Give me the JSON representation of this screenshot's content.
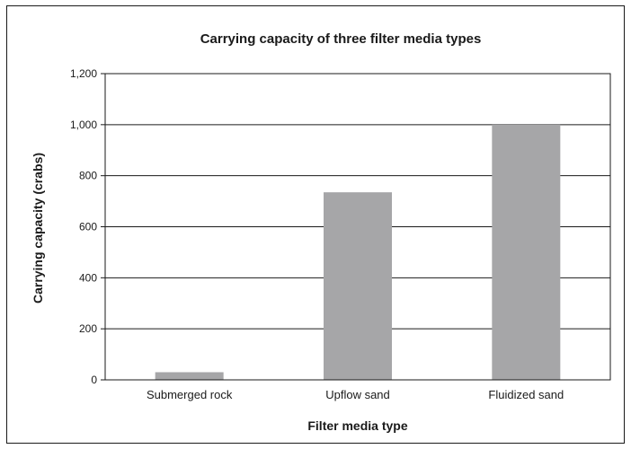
{
  "chart_data": {
    "type": "bar",
    "title": "Carrying capacity of three filter media types",
    "xlabel": "Filter media type",
    "ylabel": "Carrying capacity (crabs)",
    "categories": [
      "Submerged rock",
      "Upflow sand",
      "Fluidized sand"
    ],
    "values": [
      30,
      735,
      1000
    ],
    "ylim": [
      0,
      1200
    ],
    "yticks": [
      0,
      200,
      400,
      600,
      800,
      1000,
      1200
    ],
    "ytick_labels": [
      "0",
      "200",
      "400",
      "600",
      "800",
      "1,000",
      "1,200"
    ],
    "grid": "horizontal",
    "bar_color": "#a6a6a8"
  }
}
